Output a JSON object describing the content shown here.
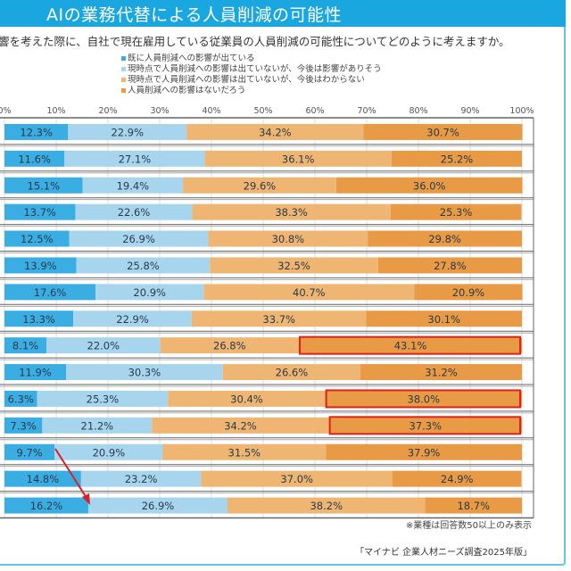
{
  "header": {
    "title": "AIの業務代替による人員削減の可能性"
  },
  "question": "響を考えた際に、自社で現在雇用している従業員の人員削減の可能性についてどのように考えますか。",
  "note": "※業種は回答数50以上のみ表示",
  "source": "「マイナビ 企業人材ニーズ調査2025年版」",
  "chart_data": {
    "type": "bar",
    "orientation": "horizontal-stacked-100",
    "xlim": [
      0,
      100
    ],
    "x_ticks": [
      "0%",
      "10%",
      "20%",
      "30%",
      "40%",
      "50%",
      "60%",
      "70%",
      "80%",
      "90%",
      "100%"
    ],
    "grid": true,
    "legend_position": "top",
    "colors": [
      "#3aaee3",
      "#a8d5ee",
      "#efb673",
      "#e99a45"
    ],
    "series": [
      {
        "name": "既に人員削減への影響が出ている",
        "values": [
          12.3,
          11.6,
          15.1,
          13.7,
          12.5,
          13.9,
          17.6,
          13.3,
          8.1,
          11.9,
          6.3,
          7.3,
          9.7,
          14.8,
          16.2
        ]
      },
      {
        "name": "現時点で人員削減への影響は出ていないが、今後は影響がありそう",
        "values": [
          22.9,
          27.1,
          19.4,
          22.6,
          26.9,
          25.8,
          20.9,
          22.9,
          22.0,
          30.3,
          25.3,
          21.2,
          20.9,
          23.2,
          26.9
        ]
      },
      {
        "name": "現時点で人員削減への影響は出ていないが、今後はわからない",
        "values": [
          34.2,
          36.1,
          29.6,
          38.3,
          30.8,
          32.5,
          40.7,
          33.7,
          26.8,
          26.6,
          30.4,
          34.2,
          31.5,
          37.0,
          38.2
        ]
      },
      {
        "name": "人員削減への影響はないだろう",
        "values": [
          30.7,
          25.2,
          36.0,
          25.3,
          29.8,
          27.8,
          20.9,
          30.1,
          43.1,
          31.2,
          38.0,
          37.3,
          37.9,
          24.9,
          18.7
        ]
      }
    ],
    "highlighted_rows": [
      8,
      10,
      11
    ],
    "annotations": [
      "red arrow from row 13 to row 15 first segment"
    ]
  }
}
